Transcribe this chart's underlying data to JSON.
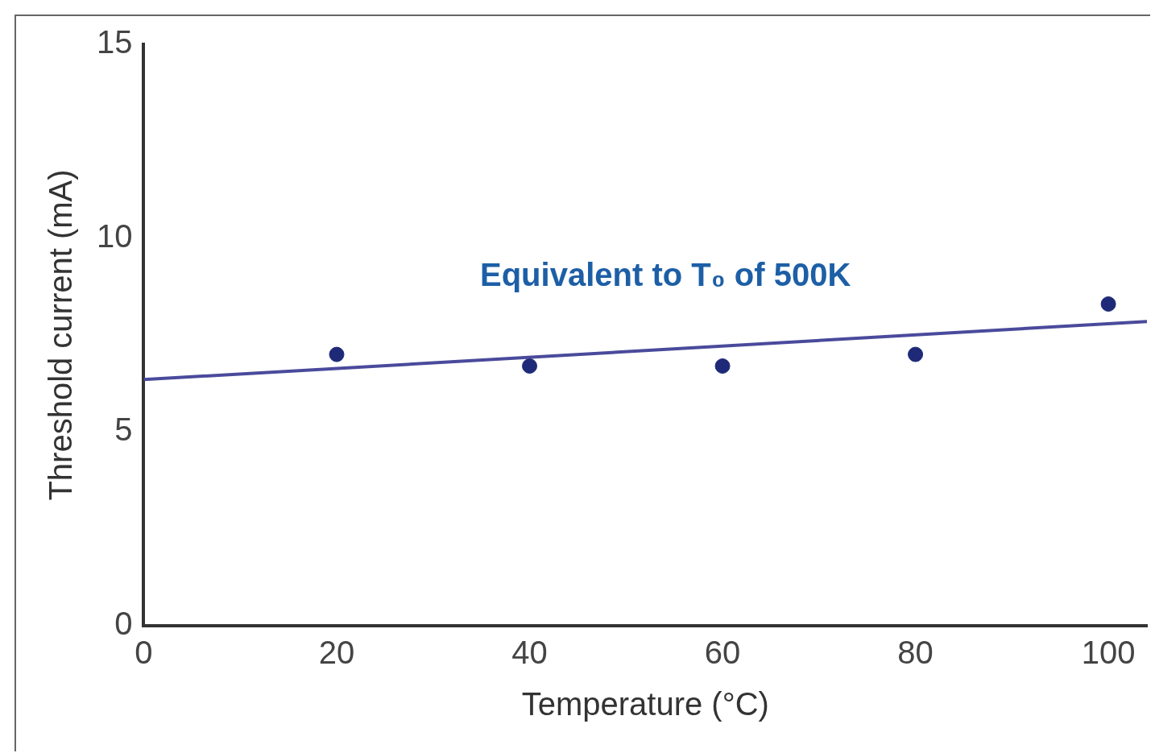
{
  "chart_data": {
    "type": "scatter",
    "xlabel": "Temperature (°C)",
    "ylabel": "Threshold current (mA)",
    "x": [
      20,
      40,
      60,
      80,
      100
    ],
    "series": [
      {
        "color": "#1e2a78",
        "values": [
          7.0,
          6.7,
          6.7,
          7.0,
          8.3
        ],
        "marker": "circle"
      },
      {
        "type": "line",
        "color": "#4a4a9c",
        "x": [
          0,
          104
        ],
        "values": [
          6.35,
          7.85
        ],
        "line_style": "solid"
      }
    ],
    "annotations": [
      "Equivalent to T₀ of 500K"
    ],
    "xlim": [
      0,
      104
    ],
    "xticks": [
      0,
      20,
      40,
      60,
      80,
      100
    ],
    "ylim": [
      0,
      15
    ],
    "yticks": [
      0,
      5,
      10,
      15
    ],
    "grid": false,
    "legend": false
  }
}
